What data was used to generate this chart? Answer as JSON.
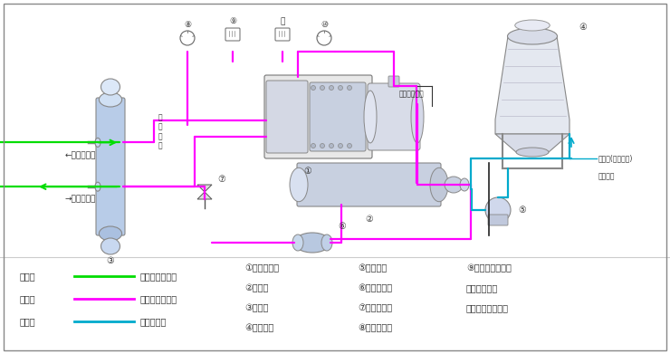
{
  "bg_color": "#ffffff",
  "green_color": "#00dd00",
  "magenta_color": "#ff00ff",
  "cyan_color": "#00aacc",
  "dark_color": "#333333",
  "line_color": "#aaaaaa",
  "legend_items": [
    {
      "label_left": "绿色线",
      "line_color": "#00dd00",
      "label_right": "截冷剂循环回路"
    },
    {
      "label_left": "红色线",
      "line_color": "#ff00ff",
      "label_right": "制冷剂循环回路"
    },
    {
      "label_left": "蓝色线",
      "line_color": "#00aacc",
      "label_right": "水循环回路"
    }
  ],
  "component_labels_col1": [
    "①螺杆压缩机",
    "②冷凝器",
    "③蒸发器",
    "④冷却水塔"
  ],
  "component_labels_col2": [
    "⑤冷却水泵",
    "⑥干燥过滤器",
    "⑦供液膨胀阀",
    "⑧低压压力表"
  ],
  "component_labels_col3": [
    "⑨低压压力控制器",
    "⑪高压压力表",
    "⑫高压压力控制器"
  ]
}
